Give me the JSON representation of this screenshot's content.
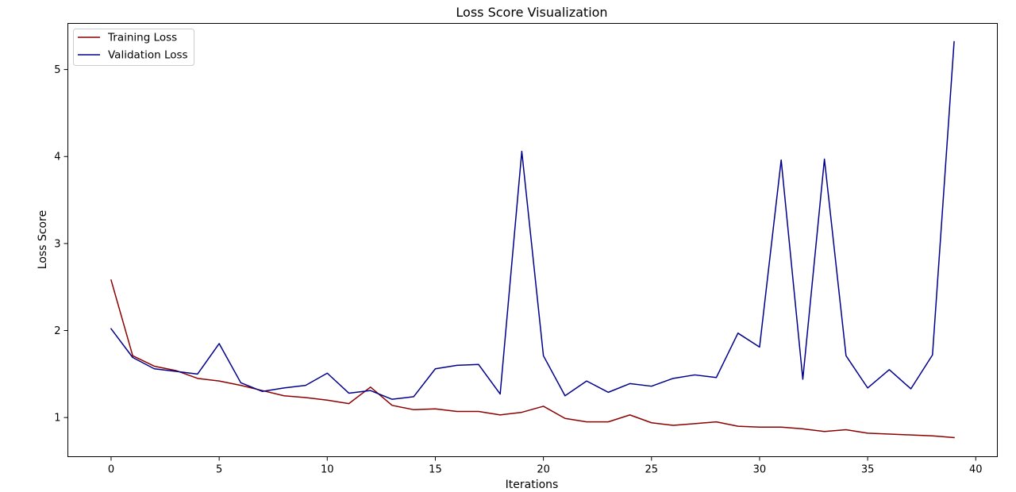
{
  "chart_data": {
    "type": "line",
    "title": "Loss Score Visualization",
    "xlabel": "Iterations",
    "ylabel": "Loss Score",
    "xlim": [
      -2,
      41
    ],
    "ylim": [
      0.55,
      5.53
    ],
    "xticks": [
      0,
      5,
      10,
      15,
      20,
      25,
      30,
      35,
      40
    ],
    "yticks": [
      1,
      2,
      3,
      4,
      5
    ],
    "grid": false,
    "legend_position": "top-left",
    "x": [
      0,
      1,
      2,
      3,
      4,
      5,
      6,
      7,
      8,
      9,
      10,
      11,
      12,
      13,
      14,
      15,
      16,
      17,
      18,
      19,
      20,
      21,
      22,
      23,
      24,
      25,
      26,
      27,
      28,
      29,
      30,
      31,
      32,
      33,
      34,
      35,
      36,
      37,
      38,
      39
    ],
    "series": [
      {
        "name": "Training Loss",
        "color": "#8b0000",
        "values": [
          2.58,
          1.71,
          1.59,
          1.54,
          1.45,
          1.42,
          1.37,
          1.31,
          1.25,
          1.23,
          1.2,
          1.16,
          1.35,
          1.14,
          1.09,
          1.1,
          1.07,
          1.07,
          1.03,
          1.06,
          1.13,
          0.99,
          0.95,
          0.95,
          1.03,
          0.94,
          0.91,
          0.93,
          0.95,
          0.9,
          0.89,
          0.89,
          0.87,
          0.84,
          0.86,
          0.82,
          0.81,
          0.8,
          0.79,
          0.77
        ]
      },
      {
        "name": "Validation Loss",
        "color": "#00008b",
        "values": [
          2.02,
          1.69,
          1.56,
          1.53,
          1.5,
          1.85,
          1.4,
          1.3,
          1.34,
          1.37,
          1.51,
          1.28,
          1.31,
          1.21,
          1.24,
          1.56,
          1.6,
          1.61,
          1.27,
          4.06,
          1.71,
          1.25,
          1.42,
          1.29,
          1.39,
          1.36,
          1.45,
          1.49,
          1.46,
          1.97,
          1.81,
          3.96,
          1.44,
          3.97,
          1.71,
          1.34,
          1.55,
          1.33,
          1.72,
          5.32
        ]
      }
    ]
  }
}
